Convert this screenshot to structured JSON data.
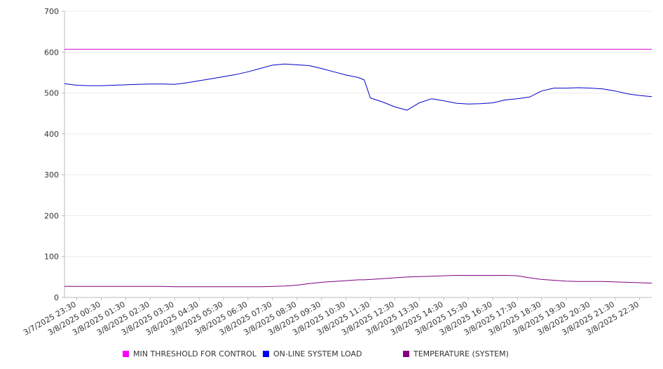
{
  "chart_data": {
    "type": "line",
    "title": "",
    "xlabel": "",
    "ylabel": "",
    "ylim": [
      0,
      700
    ],
    "y_ticks": [
      0,
      100,
      200,
      300,
      400,
      500,
      600,
      700
    ],
    "grid": true,
    "legend_position": "bottom",
    "x_tick_labels": [
      "3/7/2025 23:30",
      "3/8/2025 00:30",
      "3/8/2025 01:30",
      "3/8/2025 02:30",
      "3/8/2025 03:30",
      "3/8/2025 04:30",
      "3/8/2025 05:30",
      "3/8/2025 06:30",
      "3/8/2025 07:30",
      "3/8/2025 08:30",
      "3/8/2025 09:30",
      "3/8/2025 10:30",
      "3/8/2025 11:30",
      "3/8/2025 12:30",
      "3/8/2025 13:30",
      "3/8/2025 14:30",
      "3/8/2025 15:30",
      "3/8/2025 16:30",
      "3/8/2025 17:30",
      "3/8/2025 18:30",
      "3/8/2025 19:30",
      "3/8/2025 20:30",
      "3/8/2025 21:30",
      "3/8/2025 22:30"
    ],
    "x": [
      "3/7/2025 23:00",
      "3/7/2025 23:30",
      "3/8/2025 00:00",
      "3/8/2025 00:30",
      "3/8/2025 01:00",
      "3/8/2025 01:30",
      "3/8/2025 02:00",
      "3/8/2025 02:30",
      "3/8/2025 03:00",
      "3/8/2025 03:30",
      "3/8/2025 04:00",
      "3/8/2025 04:30",
      "3/8/2025 05:00",
      "3/8/2025 05:30",
      "3/8/2025 06:00",
      "3/8/2025 06:30",
      "3/8/2025 07:00",
      "3/8/2025 07:30",
      "3/8/2025 08:00",
      "3/8/2025 08:30",
      "3/8/2025 09:00",
      "3/8/2025 09:30",
      "3/8/2025 10:00",
      "3/8/2025 10:30",
      "3/8/2025 11:00",
      "3/8/2025 11:15",
      "3/8/2025 11:30",
      "3/8/2025 12:00",
      "3/8/2025 12:30",
      "3/8/2025 13:00",
      "3/8/2025 13:30",
      "3/8/2025 14:00",
      "3/8/2025 14:30",
      "3/8/2025 15:00",
      "3/8/2025 15:30",
      "3/8/2025 16:00",
      "3/8/2025 16:30",
      "3/8/2025 17:00",
      "3/8/2025 17:30",
      "3/8/2025 18:00",
      "3/8/2025 18:30",
      "3/8/2025 19:00",
      "3/8/2025 19:30",
      "3/8/2025 20:00",
      "3/8/2025 20:30",
      "3/8/2025 21:00",
      "3/8/2025 21:30",
      "3/8/2025 22:00",
      "3/8/2025 22:30",
      "3/8/2025 23:00"
    ],
    "series": [
      {
        "name": "MIN THRESHOLD FOR CONTROL",
        "color": "#d400d4",
        "values": [
          607,
          607,
          607,
          607,
          607,
          607,
          607,
          607,
          607,
          607,
          607,
          607,
          607,
          607,
          607,
          607,
          607,
          607,
          607,
          607,
          607,
          607,
          607,
          607,
          607,
          607,
          607,
          607,
          607,
          607,
          607,
          607,
          607,
          607,
          607,
          607,
          607,
          607,
          607,
          607,
          607,
          607,
          607,
          607,
          607,
          607,
          607,
          607,
          607,
          607
        ]
      },
      {
        "name": "ON-LINE SYSTEM LOAD",
        "color": "#0000cc",
        "values": [
          523,
          519,
          518,
          518,
          519,
          520,
          521,
          522,
          522,
          521,
          525,
          530,
          535,
          540,
          545,
          552,
          560,
          568,
          571,
          569,
          567,
          560,
          552,
          544,
          538,
          532,
          488,
          478,
          466,
          458,
          476,
          486,
          481,
          475,
          473,
          474,
          476,
          483,
          486,
          490,
          505,
          512,
          512,
          513,
          512,
          510,
          505,
          498,
          494,
          491
        ]
      },
      {
        "name": "TEMPERATURE (SYSTEM)",
        "color": "#800080",
        "values": [
          27,
          27,
          27,
          27,
          27,
          27,
          27,
          27,
          27,
          26,
          26,
          26,
          26,
          26,
          26,
          26,
          26,
          27,
          28,
          30,
          34,
          37,
          39,
          41,
          43,
          43,
          44,
          46,
          48,
          50,
          51,
          52,
          53,
          54,
          54,
          54,
          54,
          54,
          53,
          48,
          44,
          42,
          40,
          39,
          39,
          39,
          38,
          37,
          36,
          35
        ]
      }
    ]
  }
}
